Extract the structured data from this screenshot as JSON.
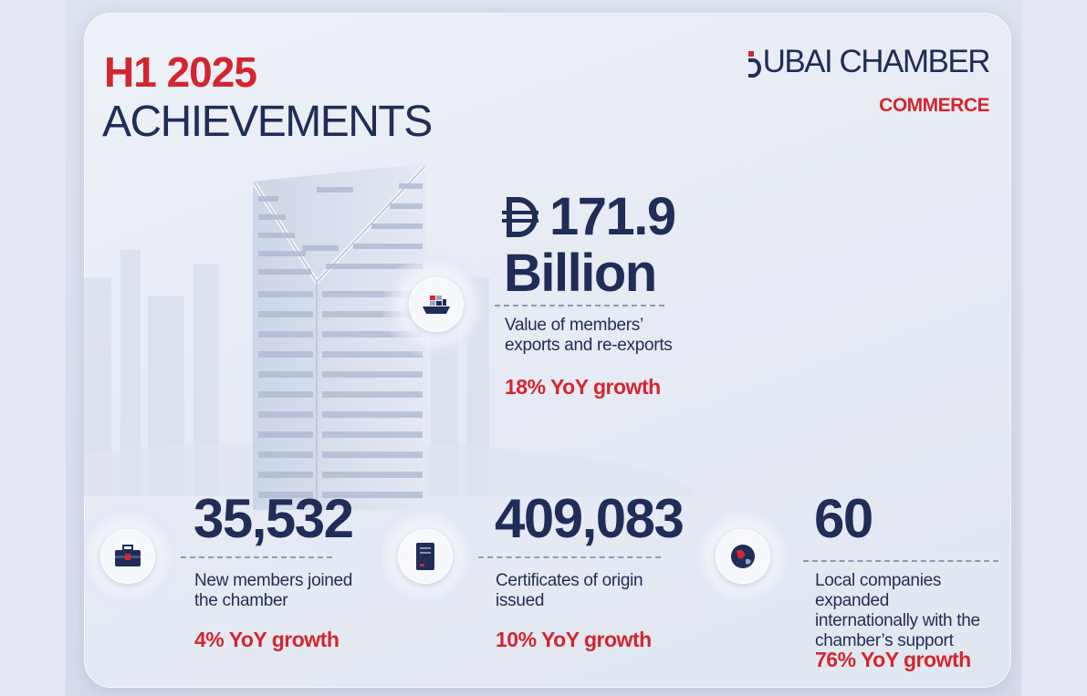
{
  "header": {
    "year": "H1 2025",
    "title": "ACHIEVEMENTS"
  },
  "logo": {
    "name": "UBAI CHAMBER",
    "sub": "COMMERCE"
  },
  "stats": {
    "exports": {
      "value": "171.9",
      "unit": "Billion",
      "currency_icon": "dirham-icon",
      "icon": "cargo-ship-icon",
      "description_line1": "Value of members’",
      "description_line2": "exports and re-exports",
      "growth": "18% YoY growth"
    },
    "members": {
      "value": "35,532",
      "icon": "briefcase-icon",
      "description_line1": "New members joined",
      "description_line2": "the chamber",
      "growth": "4% YoY growth"
    },
    "certificates": {
      "value": "409,083",
      "icon": "certificate-document-icon",
      "description_line1": "Certificates of origin",
      "description_line2": "issued",
      "growth": "10% YoY growth"
    },
    "expansion": {
      "value": "60",
      "icon": "globe-icon",
      "description_line1": "Local companies expanded",
      "description_line2": "internationally with the",
      "description_line3": "chamber’s support",
      "growth": "76% YoY growth"
    }
  },
  "colors": {
    "navy": "#1f2d57",
    "red": "#d32630",
    "background": "#e6ebf4"
  }
}
